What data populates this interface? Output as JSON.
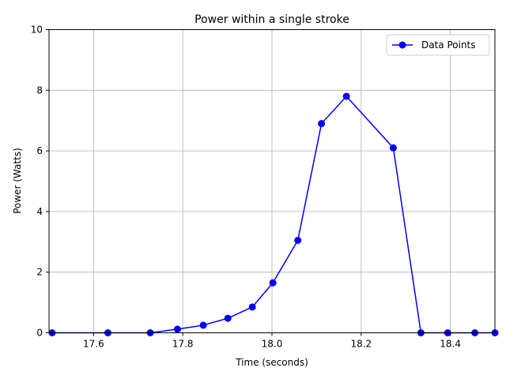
{
  "chart_data": {
    "type": "line",
    "title": "Power within a single stroke",
    "xlabel": "Time (seconds)",
    "ylabel": "Power (Watts)",
    "xlim": [
      17.5,
      18.5
    ],
    "ylim": [
      0,
      10
    ],
    "xticks": [
      "17.6",
      "17.8",
      "18.0",
      "18.2",
      "18.4"
    ],
    "yticks": [
      "0",
      "2",
      "4",
      "6",
      "8",
      "10"
    ],
    "grid": true,
    "legend": {
      "position": "top-right"
    },
    "series": [
      {
        "name": "Data Points",
        "color": "#0000ff",
        "marker": "circle",
        "x": [
          17.507,
          17.632,
          17.727,
          17.788,
          17.846,
          17.901,
          17.956,
          18.002,
          18.058,
          18.111,
          18.167,
          18.272,
          18.334,
          18.394,
          18.455,
          18.5
        ],
        "y": [
          0,
          0,
          0,
          0.12,
          0.25,
          0.48,
          0.85,
          1.65,
          3.05,
          6.9,
          7.8,
          6.1,
          0,
          0,
          0,
          0
        ]
      }
    ]
  }
}
